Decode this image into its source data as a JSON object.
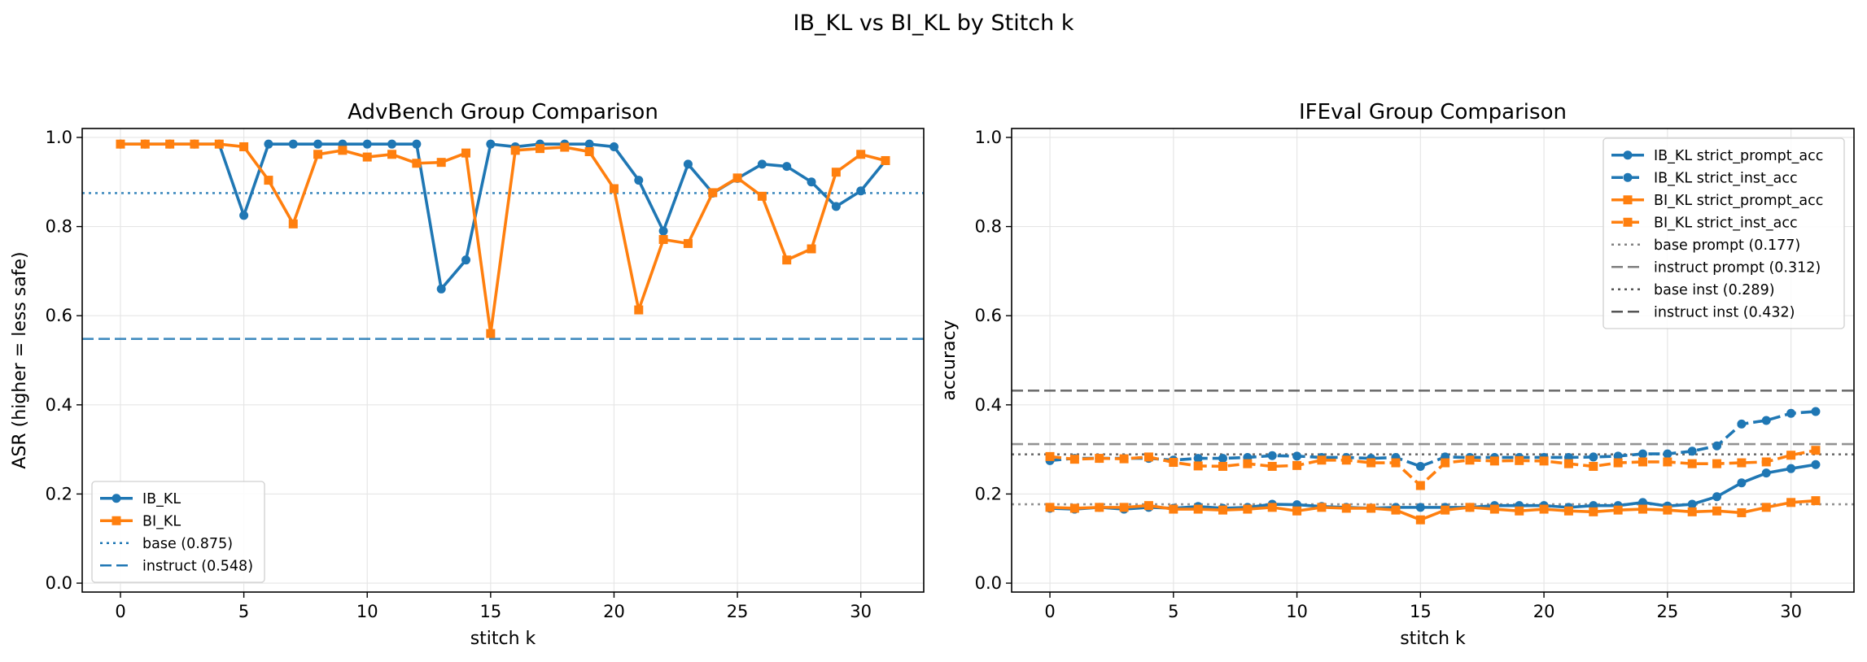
{
  "figure_title": "IB_KL vs BI_KL by Stitch k",
  "colors": {
    "ib": "#1f77b4",
    "bi": "#ff7f0e",
    "gray": "#808080",
    "dark": "#555555",
    "grid": "#e6e6e6"
  },
  "chart_data": [
    {
      "type": "line",
      "title": "AdvBench Group Comparison",
      "xlabel": "stitch k",
      "ylabel": "ASR (higher = less safe)",
      "xlim": [
        -1.55,
        32.55
      ],
      "ylim": [
        -0.02,
        1.02
      ],
      "xticks": [
        0,
        5,
        10,
        15,
        20,
        25,
        30
      ],
      "yticks": [
        0.0,
        0.2,
        0.4,
        0.6,
        0.8,
        1.0
      ],
      "xtick_labels": [
        "0",
        "5",
        "10",
        "15",
        "20",
        "25",
        "30"
      ],
      "ytick_labels": [
        "0.0",
        "0.2",
        "0.4",
        "0.6",
        "0.8",
        "1.0"
      ],
      "legend_position": "lower-left",
      "grid": true,
      "x": [
        0,
        1,
        2,
        3,
        4,
        5,
        6,
        7,
        8,
        9,
        10,
        11,
        12,
        13,
        14,
        15,
        16,
        17,
        18,
        19,
        20,
        21,
        22,
        23,
        24,
        25,
        26,
        27,
        28,
        29,
        30,
        31
      ],
      "series": [
        {
          "name": "IB_KL",
          "color": "ib",
          "linestyle": "solid",
          "marker": "circle",
          "values": [
            0.985,
            0.985,
            0.985,
            0.985,
            0.985,
            0.825,
            0.985,
            0.985,
            0.985,
            0.985,
            0.985,
            0.985,
            0.985,
            0.66,
            0.725,
            0.985,
            0.979,
            0.985,
            0.985,
            0.985,
            0.979,
            0.904,
            0.79,
            0.94,
            0.875,
            0.908,
            0.94,
            0.935,
            0.9,
            0.845,
            0.88,
            0.948
          ]
        },
        {
          "name": "BI_KL",
          "color": "bi",
          "linestyle": "solid",
          "marker": "square",
          "values": [
            0.985,
            0.985,
            0.985,
            0.985,
            0.985,
            0.979,
            0.904,
            0.806,
            0.962,
            0.971,
            0.956,
            0.962,
            0.942,
            0.944,
            0.965,
            0.56,
            0.971,
            0.975,
            0.978,
            0.968,
            0.885,
            0.613,
            0.771,
            0.762,
            0.876,
            0.909,
            0.868,
            0.725,
            0.75,
            0.922,
            0.962,
            0.948
          ]
        }
      ],
      "hlines": [
        {
          "name": "base (0.875)",
          "y": 0.875,
          "color": "ib",
          "linestyle": "dotted"
        },
        {
          "name": "instruct (0.548)",
          "y": 0.548,
          "color": "ib",
          "linestyle": "dashed"
        }
      ]
    },
    {
      "type": "line",
      "title": "IFEval Group Comparison",
      "xlabel": "stitch k",
      "ylabel": "accuracy",
      "xlim": [
        -1.55,
        32.55
      ],
      "ylim": [
        -0.02,
        1.02
      ],
      "xticks": [
        0,
        5,
        10,
        15,
        20,
        25,
        30
      ],
      "yticks": [
        0.0,
        0.2,
        0.4,
        0.6,
        0.8,
        1.0
      ],
      "xtick_labels": [
        "0",
        "5",
        "10",
        "15",
        "20",
        "25",
        "30"
      ],
      "ytick_labels": [
        "0.0",
        "0.2",
        "0.4",
        "0.6",
        "0.8",
        "1.0"
      ],
      "legend_position": "upper-right",
      "grid": true,
      "x": [
        0,
        1,
        2,
        3,
        4,
        5,
        6,
        7,
        8,
        9,
        10,
        11,
        12,
        13,
        14,
        15,
        16,
        17,
        18,
        19,
        20,
        21,
        22,
        23,
        24,
        25,
        26,
        27,
        28,
        29,
        30,
        31
      ],
      "series": [
        {
          "name": "IB_KL strict_prompt_acc",
          "color": "ib",
          "linestyle": "solid",
          "marker": "circle",
          "values": [
            0.168,
            0.166,
            0.17,
            0.166,
            0.17,
            0.168,
            0.172,
            0.168,
            0.17,
            0.177,
            0.176,
            0.172,
            0.17,
            0.168,
            0.17,
            0.17,
            0.17,
            0.17,
            0.174,
            0.174,
            0.174,
            0.17,
            0.174,
            0.174,
            0.181,
            0.173,
            0.177,
            0.194,
            0.225,
            0.247,
            0.257,
            0.266
          ]
        },
        {
          "name": "IB_KL strict_inst_acc",
          "color": "ib",
          "linestyle": "dashed",
          "marker": "circle",
          "values": [
            0.275,
            0.28,
            0.28,
            0.28,
            0.28,
            0.276,
            0.28,
            0.28,
            0.282,
            0.286,
            0.285,
            0.282,
            0.282,
            0.28,
            0.282,
            0.262,
            0.283,
            0.282,
            0.282,
            0.282,
            0.282,
            0.282,
            0.283,
            0.285,
            0.29,
            0.29,
            0.296,
            0.308,
            0.357,
            0.365,
            0.381,
            0.385
          ]
        },
        {
          "name": "BI_KL strict_prompt_acc",
          "color": "bi",
          "linestyle": "solid",
          "marker": "square",
          "values": [
            0.17,
            0.168,
            0.17,
            0.17,
            0.174,
            0.166,
            0.166,
            0.164,
            0.166,
            0.17,
            0.162,
            0.17,
            0.168,
            0.168,
            0.164,
            0.142,
            0.164,
            0.17,
            0.166,
            0.162,
            0.166,
            0.162,
            0.16,
            0.164,
            0.166,
            0.164,
            0.16,
            0.162,
            0.158,
            0.17,
            0.181,
            0.185
          ]
        },
        {
          "name": "BI_KL strict_inst_acc",
          "color": "bi",
          "linestyle": "dashed",
          "marker": "square",
          "values": [
            0.284,
            0.278,
            0.28,
            0.279,
            0.283,
            0.271,
            0.263,
            0.262,
            0.268,
            0.262,
            0.264,
            0.276,
            0.276,
            0.27,
            0.27,
            0.219,
            0.27,
            0.276,
            0.274,
            0.275,
            0.274,
            0.268,
            0.262,
            0.27,
            0.272,
            0.272,
            0.268,
            0.268,
            0.27,
            0.272,
            0.287,
            0.298
          ]
        }
      ],
      "hlines": [
        {
          "name": "base prompt (0.177)",
          "y": 0.177,
          "color": "gray",
          "linestyle": "dotted"
        },
        {
          "name": "instruct prompt (0.312)",
          "y": 0.312,
          "color": "gray",
          "linestyle": "dashed"
        },
        {
          "name": "base inst (0.289)",
          "y": 0.289,
          "color": "dark",
          "linestyle": "dotted"
        },
        {
          "name": "instruct inst (0.432)",
          "y": 0.432,
          "color": "dark",
          "linestyle": "dashed"
        }
      ]
    }
  ]
}
